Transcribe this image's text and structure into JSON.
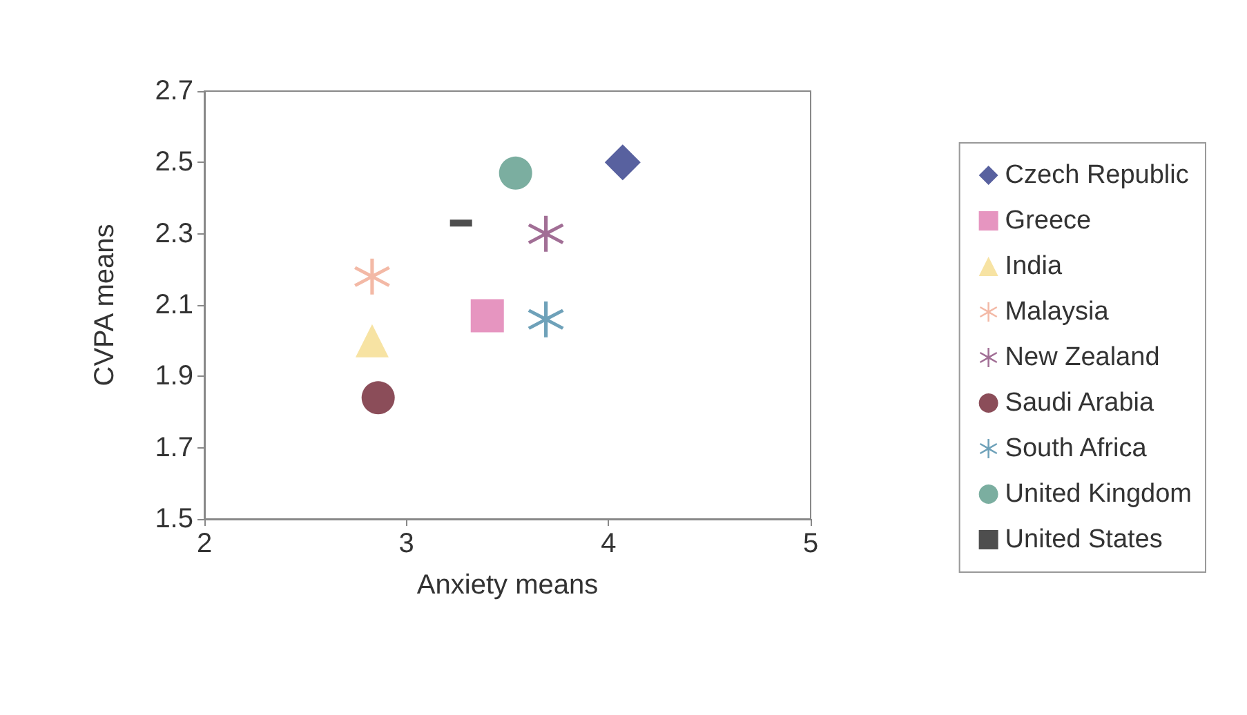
{
  "chart_data": {
    "type": "scatter",
    "xlabel": "Anxiety means",
    "ylabel": "CVPA means",
    "xlim": [
      2,
      5
    ],
    "xticks": [
      2,
      3,
      4,
      5
    ],
    "ylim": [
      1.5,
      2.7
    ],
    "yticks": [
      1.5,
      1.7,
      1.9,
      2.1,
      2.3,
      2.5,
      2.7
    ],
    "grid": false,
    "legend": "right",
    "series": [
      {
        "name": "Czech Republic",
        "color": "#2e3a87",
        "marker": "diamond",
        "x": [
          4.07
        ],
        "values": [
          2.5
        ]
      },
      {
        "name": "Greece",
        "color": "#e07ab0",
        "marker": "square",
        "x": [
          3.4
        ],
        "values": [
          2.07
        ]
      },
      {
        "name": "India",
        "color": "#f5dc8c",
        "marker": "triangle",
        "x": [
          2.83
        ],
        "values": [
          2.0
        ]
      },
      {
        "name": "Malaysia",
        "color": "#f0a890",
        "marker": "cross",
        "x": [
          2.83
        ],
        "values": [
          2.18
        ]
      },
      {
        "name": "New Zealand",
        "color": "#8a4a7a",
        "marker": "cross",
        "x": [
          3.69
        ],
        "values": [
          2.3
        ]
      },
      {
        "name": "Saudi Arabia",
        "color": "#6e2030",
        "marker": "circle",
        "x": [
          2.86
        ],
        "values": [
          1.84
        ]
      },
      {
        "name": "South Africa",
        "color": "#4a8aa8",
        "marker": "cross",
        "x": [
          3.69
        ],
        "values": [
          2.06
        ]
      },
      {
        "name": "United Kingdom",
        "color": "#5a9a88",
        "marker": "circle",
        "x": [
          3.54
        ],
        "values": [
          2.47
        ]
      },
      {
        "name": "United States",
        "color": "#222222",
        "x": [
          3.27
        ],
        "values": [
          2.33
        ]
      }
    ]
  }
}
